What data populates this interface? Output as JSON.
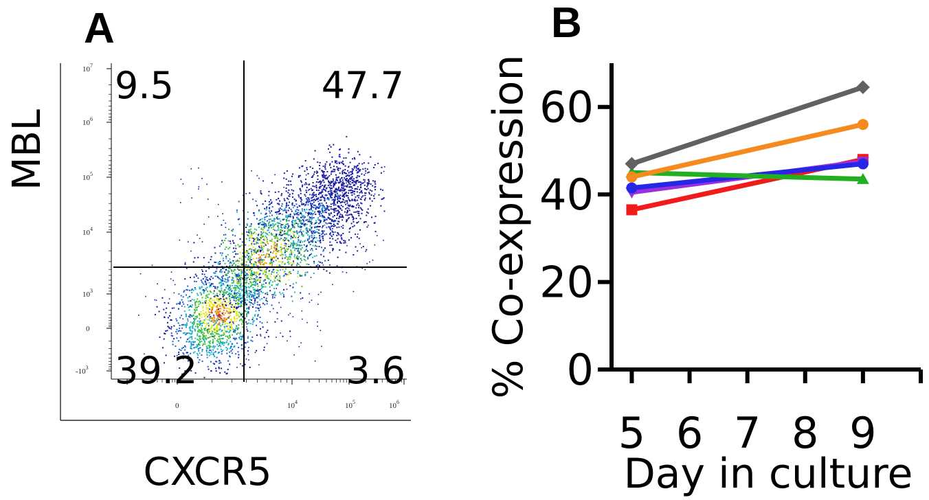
{
  "chart_data": [
    {
      "panel": "A",
      "type": "scatter",
      "subtype": "flow-cytometry-density-plot",
      "xlabel": "CXCR5",
      "ylabel": "MBL",
      "x_tick_labels": [
        {
          "base": "0",
          "exp": ""
        },
        {
          "base": "10",
          "exp": "4"
        },
        {
          "base": "10",
          "exp": "5"
        },
        {
          "base": "10",
          "exp": "6"
        }
      ],
      "y_tick_labels": [
        {
          "base": "10",
          "exp": "7"
        },
        {
          "base": "10",
          "exp": "6"
        },
        {
          "base": "10",
          "exp": "5"
        },
        {
          "base": "10",
          "exp": "4"
        },
        {
          "base": "10",
          "exp": "3"
        },
        {
          "base": "0",
          "exp": ""
        },
        {
          "base": "-10",
          "exp": "3"
        }
      ],
      "quadrants": {
        "upper_left": "9.5",
        "upper_right": "47.7",
        "lower_left": "39.2",
        "lower_right": "3.6"
      },
      "density_colors": [
        "#1a1aa0",
        "#1e5fd0",
        "#19b4c8",
        "#3cc03c",
        "#e6e619",
        "#f08c14",
        "#e61e1e"
      ]
    },
    {
      "panel": "B",
      "type": "line",
      "xlabel": "Day in culture",
      "ylabel": "% Co-expression",
      "x_ticks": [
        5,
        6,
        7,
        8,
        9
      ],
      "y_ticks": [
        0,
        20,
        40,
        60
      ],
      "xlim": [
        4.65,
        10
      ],
      "ylim": [
        0,
        70
      ],
      "series": [
        {
          "name": "gray",
          "color": "#616161",
          "marker": "diamond",
          "x": [
            5,
            9
          ],
          "values": [
            47,
            64.5
          ]
        },
        {
          "name": "orange",
          "color": "#f58b1f",
          "marker": "circle",
          "x": [
            5,
            9
          ],
          "values": [
            44,
            56
          ]
        },
        {
          "name": "green",
          "color": "#22b022",
          "marker": "triangle",
          "x": [
            5,
            9
          ],
          "values": [
            45,
            43.5
          ]
        },
        {
          "name": "blue",
          "color": "#2626e6",
          "marker": "circle",
          "x": [
            5,
            9
          ],
          "values": [
            41.5,
            47
          ]
        },
        {
          "name": "purple",
          "color": "#9a2fe0",
          "marker": "triangle-down",
          "x": [
            5,
            9
          ],
          "values": [
            40.5,
            47.5
          ]
        },
        {
          "name": "red",
          "color": "#f21b1b",
          "marker": "square",
          "x": [
            5,
            9
          ],
          "values": [
            36.5,
            48
          ]
        }
      ]
    }
  ]
}
